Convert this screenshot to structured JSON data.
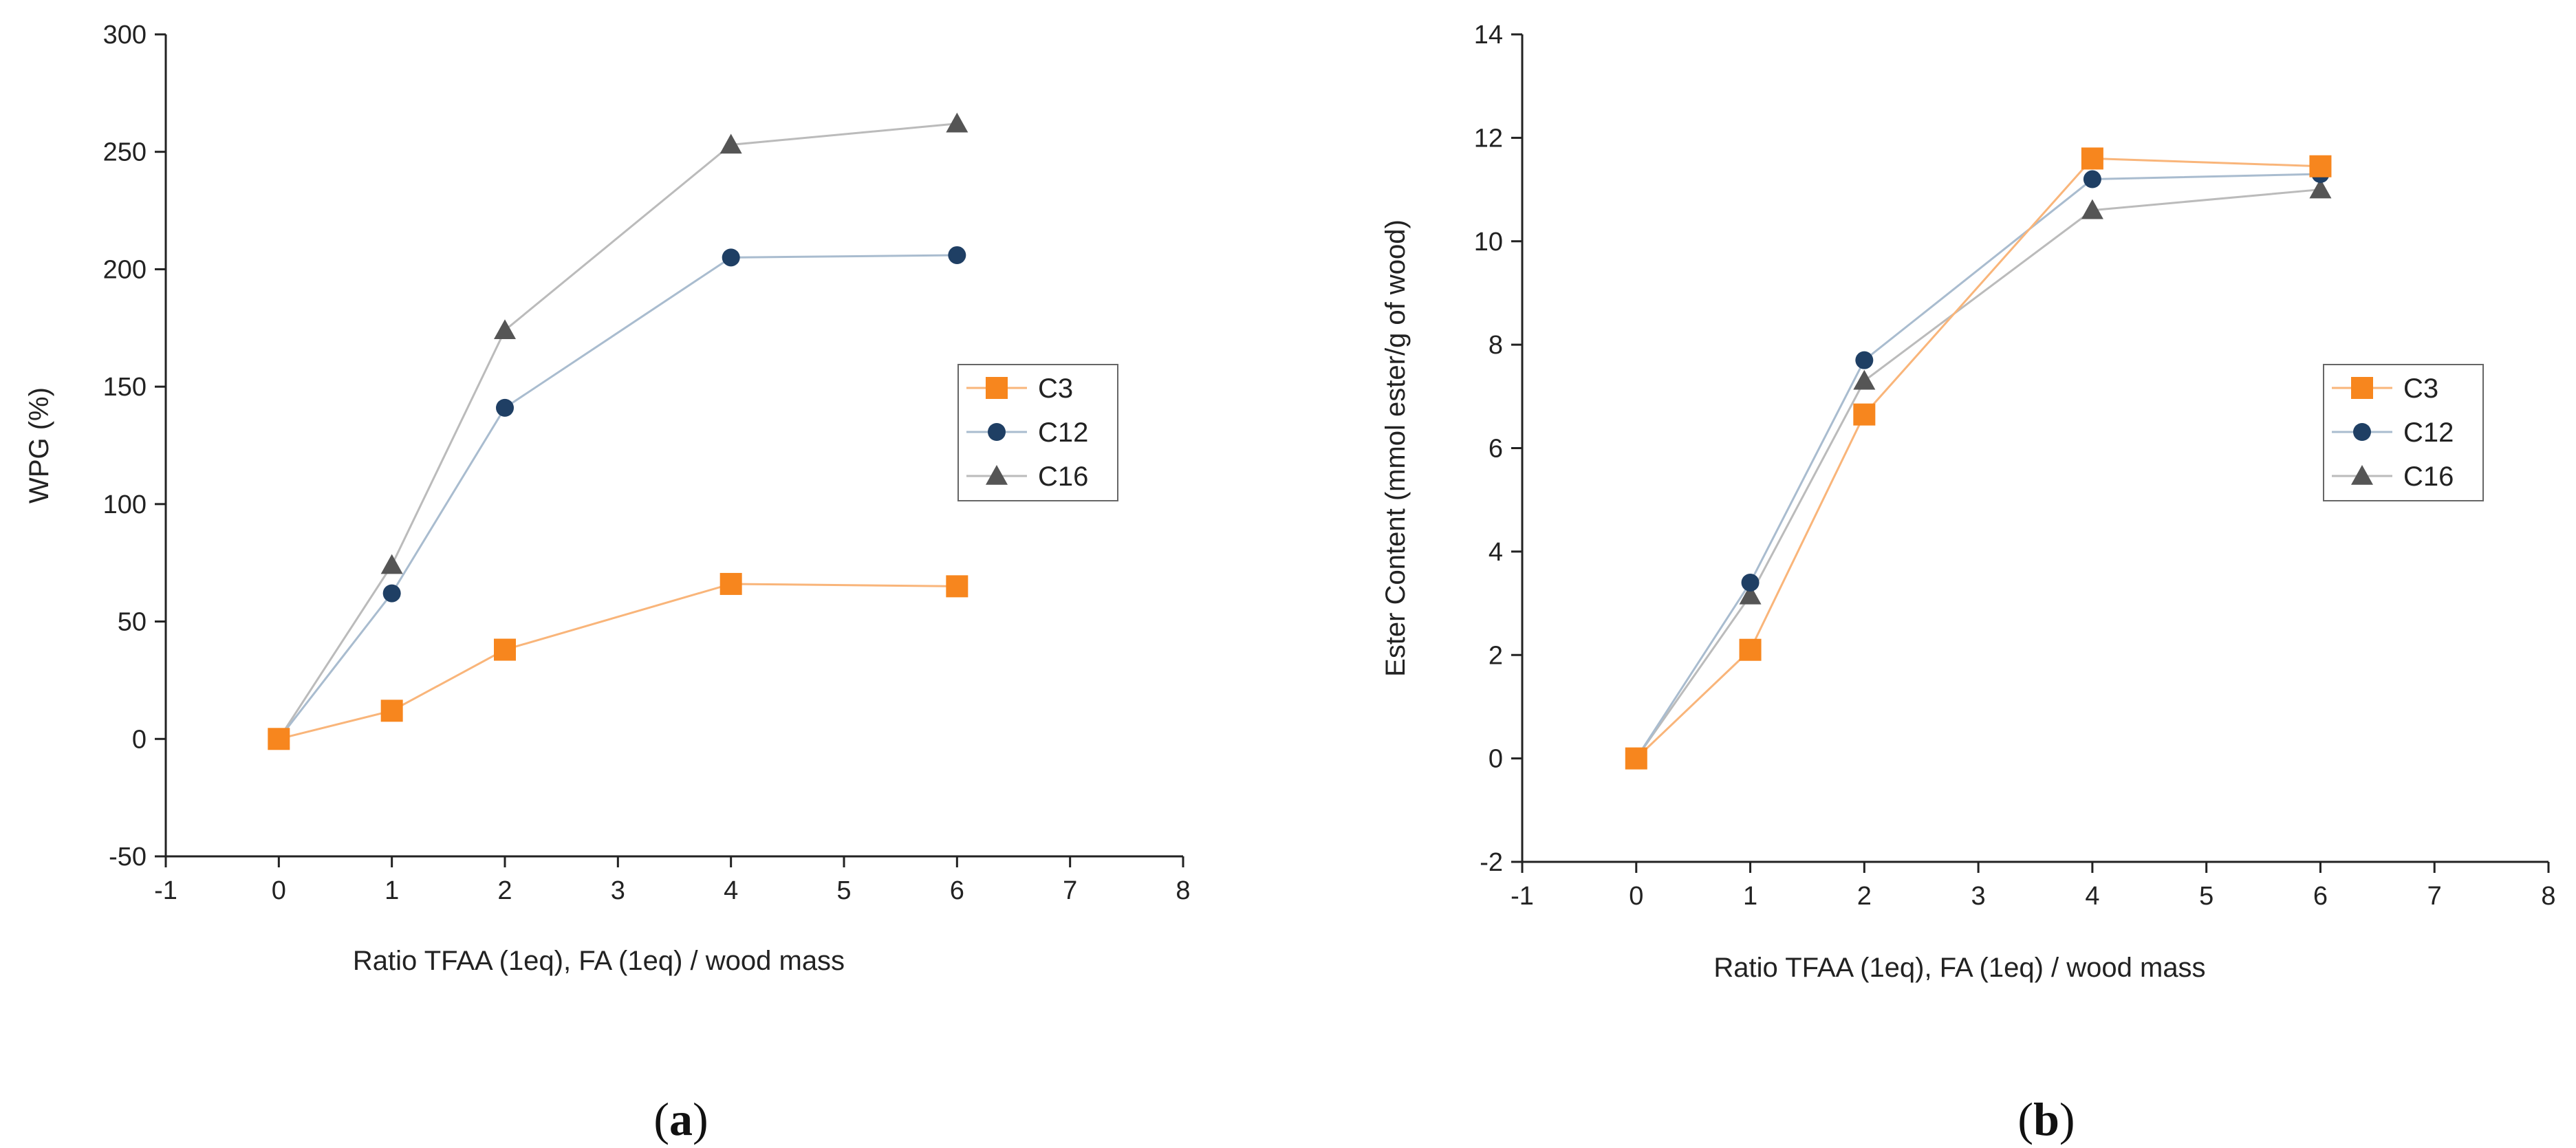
{
  "chart_data": [
    {
      "type": "line",
      "panel_label": "a",
      "x": [
        0,
        1,
        2,
        4,
        6
      ],
      "xlabel": "Ratio TFAA (1eq), FA (1eq) / wood mass",
      "ylabel": "WPG (%)",
      "xlim": [
        -1,
        8
      ],
      "ylim": [
        -50,
        300
      ],
      "xticks": [
        "-1",
        "0",
        "1",
        "2",
        "3",
        "4",
        "5",
        "6",
        "7",
        "8"
      ],
      "yticks": [
        "-50",
        "0",
        "50",
        "100",
        "150",
        "200",
        "250",
        "300"
      ],
      "legend_position": "right",
      "series": [
        {
          "name": "C3",
          "values": [
            0,
            12,
            38,
            66,
            65
          ],
          "color": "#F7861E",
          "marker": "square"
        },
        {
          "name": "C12",
          "values": [
            0,
            62,
            141,
            205,
            206
          ],
          "color": "#1F3F64",
          "marker": "circle"
        },
        {
          "name": "C16",
          "values": [
            0,
            74,
            174,
            253,
            262
          ],
          "color": "#555555",
          "marker": "triangle"
        }
      ]
    },
    {
      "type": "line",
      "panel_label": "b",
      "x": [
        0,
        1,
        2,
        4,
        6
      ],
      "xlabel": "Ratio TFAA (1eq), FA (1eq) / wood mass",
      "ylabel": "Ester Content (mmol ester/g of wood)",
      "xlim": [
        -1,
        8
      ],
      "ylim": [
        -2,
        14
      ],
      "xticks": [
        "-1",
        "0",
        "1",
        "2",
        "3",
        "4",
        "5",
        "6",
        "7",
        "8"
      ],
      "yticks": [
        "-2",
        "0",
        "2",
        "4",
        "6",
        "8",
        "10",
        "12",
        "14"
      ],
      "legend_position": "right",
      "series": [
        {
          "name": "C3",
          "values": [
            0,
            2.1,
            6.65,
            11.6,
            11.45
          ],
          "color": "#F7861E",
          "marker": "square"
        },
        {
          "name": "C12",
          "values": [
            0,
            3.4,
            7.7,
            11.2,
            11.3
          ],
          "color": "#1F3F64",
          "marker": "circle"
        },
        {
          "name": "C16",
          "values": [
            0,
            3.15,
            7.3,
            10.6,
            11.0
          ],
          "color": "#555555",
          "marker": "triangle"
        }
      ]
    }
  ],
  "captions": {
    "a": {
      "open": "(",
      "letter": "a",
      "close": ")"
    },
    "b": {
      "open": "(",
      "letter": "b",
      "close": ")"
    }
  },
  "line_colors": {
    "C3": "#F9B57A",
    "C12": "#A9BCCF",
    "C16": "#BBBBBB"
  }
}
